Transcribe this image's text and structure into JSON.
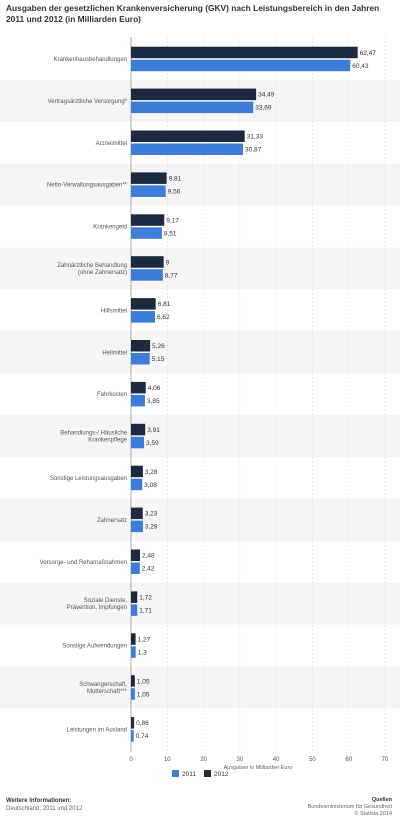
{
  "title": "Ausgaben der gesetzlichen Krankenversicherung (GKV) nach Leistungsbereich in den Jahren 2011 und 2012 (in Milliarden Euro)",
  "chart_data": {
    "type": "bar",
    "orientation": "horizontal",
    "title": "Ausgaben der gesetzlichen Krankenversicherung (GKV) nach Leistungsbereich in den Jahren 2011 und 2012 (in Milliarden Euro)",
    "xlabel": "Ausgaben in Milliarden Euro",
    "xlim": [
      0,
      70
    ],
    "xticks": [
      "0",
      "10",
      "20",
      "30",
      "40",
      "50",
      "60",
      "70"
    ],
    "grid": true,
    "legend_position": "bottom",
    "categories": [
      "Krankenhausbehandlungen",
      "Vertragsärztliche Versorgung*",
      "Arzneimittel",
      "Netto-Verwaltungsausgaben**",
      "Krankengeld",
      "Zahnärztliche Behandlung (ohne Zahnersatz)",
      "Hilfsmittel",
      "Heilmittel",
      "Fahrkosten",
      "Behandlungs-/ Häusliche Krankenpflege",
      "Sonstige Leistungsausgaben",
      "Zahnersatz",
      "Vorsorge- und Rehamaßnahmen",
      "Soziale Dienste, Prävention, Impfungen",
      "Sonstige Aufwendungen",
      "Schwangerschaft, Mutterschaft***",
      "Leistungen im Ausland"
    ],
    "series": [
      {
        "name": "2012",
        "color": "#1b2a40",
        "values": [
          62.47,
          34.49,
          31.33,
          9.81,
          9.17,
          9,
          6.81,
          5.26,
          4.06,
          3.91,
          3.28,
          3.23,
          2.48,
          1.72,
          1.27,
          1.05,
          0.86
        ],
        "labels": [
          "62,47",
          "34,49",
          "31,33",
          "9,81",
          "9,17",
          "9",
          "6,81",
          "5,26",
          "4,06",
          "3,91",
          "3,28",
          "3,23",
          "2,48",
          "1,72",
          "1,27",
          "1,05",
          "0,86"
        ]
      },
      {
        "name": "2011",
        "color": "#3b7dd8",
        "values": [
          60.43,
          33.69,
          30.87,
          9.56,
          8.51,
          8.77,
          6.62,
          5.15,
          3.85,
          3.59,
          3.08,
          3.28,
          2.42,
          1.71,
          1.3,
          1.05,
          0.74
        ],
        "labels": [
          "60,43",
          "33,69",
          "30,87",
          "9,56",
          "8,51",
          "8,77",
          "6,62",
          "5,15",
          "3,85",
          "3,59",
          "3,08",
          "3,28",
          "2,42",
          "1,71",
          "1,3",
          "1,05",
          "0,74"
        ]
      }
    ],
    "legend_order": [
      "2011",
      "2012"
    ]
  },
  "footer": {
    "left_head": "Weitere Informationen:",
    "left_sub": "Deutschland; 2011 und 2012",
    "right_head": "Quellen",
    "right_sub1": "Bundesministerium für Gesundheit",
    "right_sub2": "© Statista 2014"
  }
}
